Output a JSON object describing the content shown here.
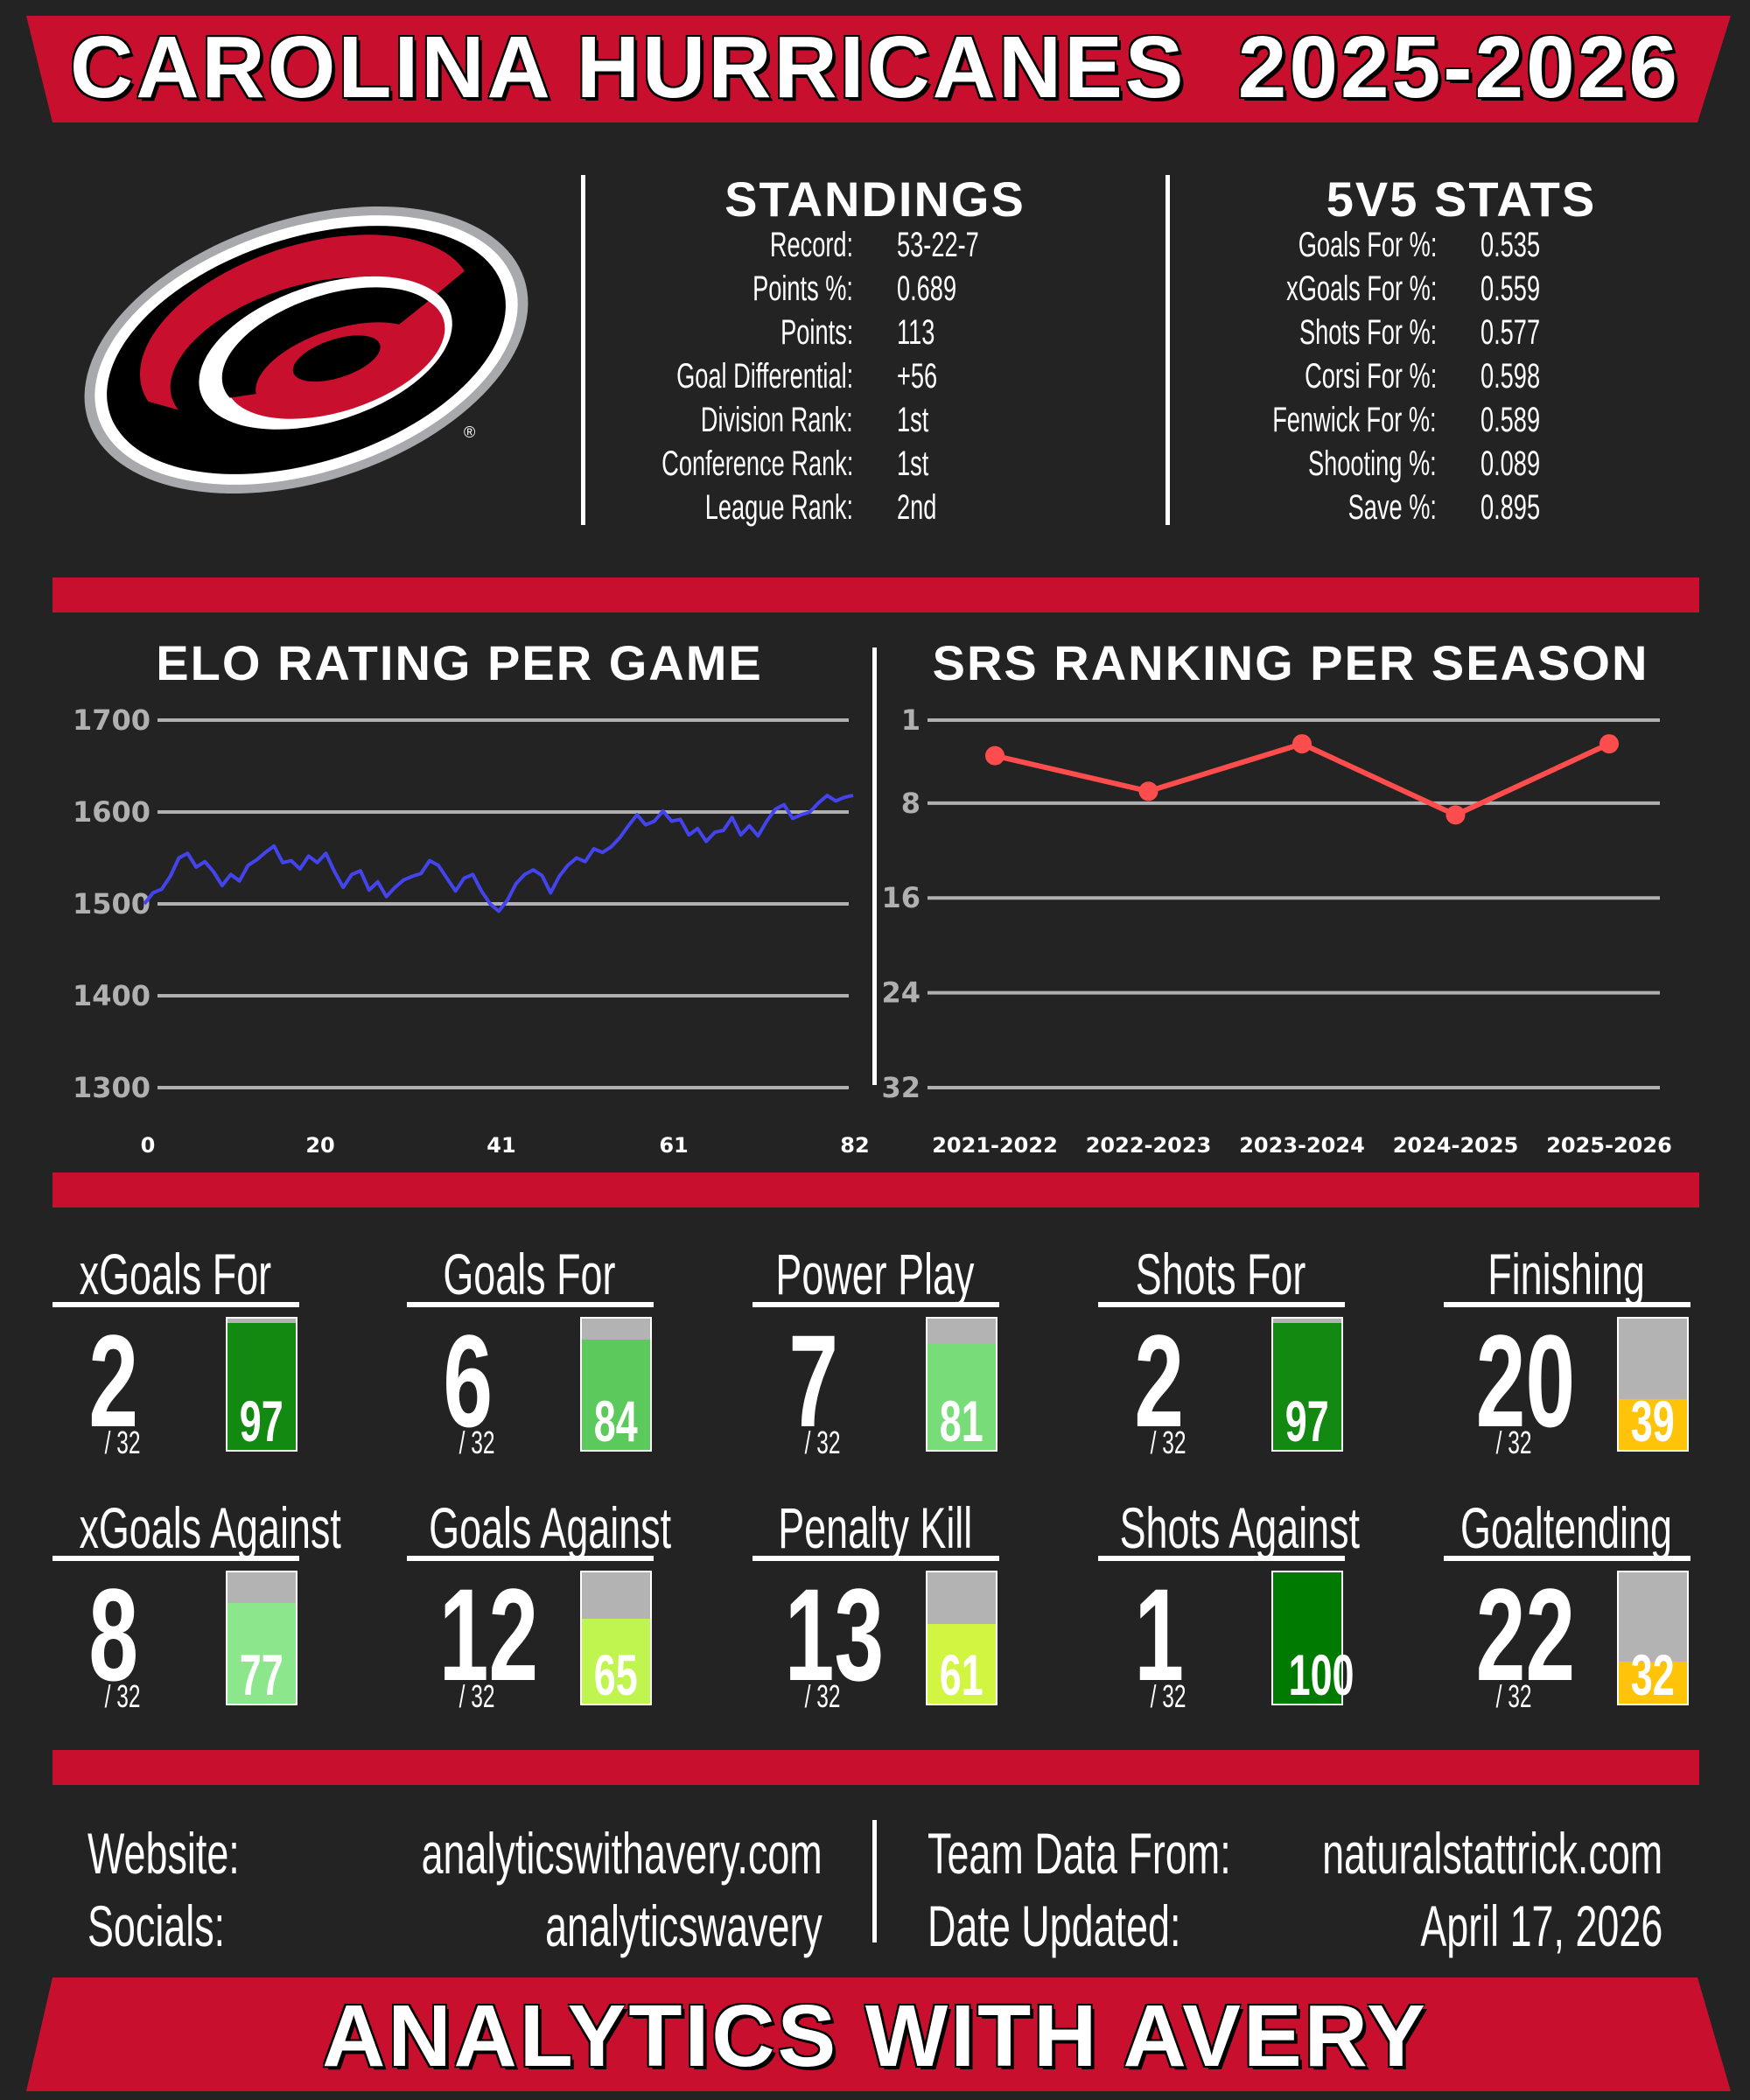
{
  "header": {
    "team": "CAROLINA HURRICANES",
    "season": "2025-2026"
  },
  "standings": {
    "title": "STANDINGS",
    "rows": [
      {
        "label": "Record:",
        "value": "53-22-7"
      },
      {
        "label": "Points %:",
        "value": "0.689"
      },
      {
        "label": "Points:",
        "value": "113"
      },
      {
        "label": "Goal Differential:",
        "value": "+56"
      },
      {
        "label": "Division Rank:",
        "value": "1st"
      },
      {
        "label": "Conference Rank:",
        "value": "1st"
      },
      {
        "label": "League Rank:",
        "value": "2nd"
      }
    ]
  },
  "fivev5": {
    "title": "5V5 STATS",
    "rows": [
      {
        "label": "Goals For %:",
        "value": "0.535"
      },
      {
        "label": "xGoals For %:",
        "value": "0.559"
      },
      {
        "label": "Shots For %:",
        "value": "0.577"
      },
      {
        "label": "Corsi For %:",
        "value": "0.598"
      },
      {
        "label": "Fenwick For %:",
        "value": "0.589"
      },
      {
        "label": "Shooting %:",
        "value": "0.089"
      },
      {
        "label": "Save %:",
        "value": "0.895"
      }
    ]
  },
  "chart_data": [
    {
      "type": "line",
      "title": "ELO RATING PER GAME",
      "x_ticks": [
        0,
        20,
        41,
        61,
        82
      ],
      "y_ticks": [
        1300,
        1400,
        1500,
        1600,
        1700
      ],
      "ylim": [
        1300,
        1700
      ],
      "xlim": [
        0,
        82
      ],
      "color": "#4444ee",
      "x": [
        0,
        1,
        2,
        3,
        4,
        5,
        6,
        7,
        8,
        9,
        10,
        11,
        12,
        13,
        14,
        15,
        16,
        17,
        18,
        19,
        20,
        21,
        22,
        23,
        24,
        25,
        26,
        27,
        28,
        29,
        30,
        31,
        32,
        33,
        34,
        35,
        36,
        37,
        38,
        39,
        40,
        41,
        42,
        43,
        44,
        45,
        46,
        47,
        48,
        49,
        50,
        51,
        52,
        53,
        54,
        55,
        56,
        57,
        58,
        59,
        60,
        61,
        62,
        63,
        64,
        65,
        66,
        67,
        68,
        69,
        70,
        71,
        72,
        73,
        74,
        75,
        76,
        77,
        78,
        79,
        80,
        81,
        82
      ],
      "y": [
        1500,
        1512,
        1516,
        1530,
        1550,
        1555,
        1540,
        1546,
        1535,
        1520,
        1532,
        1525,
        1542,
        1548,
        1556,
        1563,
        1545,
        1547,
        1538,
        1552,
        1545,
        1555,
        1535,
        1518,
        1532,
        1536,
        1515,
        1524,
        1508,
        1518,
        1526,
        1530,
        1533,
        1547,
        1542,
        1528,
        1514,
        1528,
        1532,
        1514,
        1500,
        1492,
        1504,
        1522,
        1532,
        1537,
        1531,
        1512,
        1530,
        1542,
        1550,
        1546,
        1560,
        1556,
        1562,
        1572,
        1585,
        1597,
        1586,
        1590,
        1601,
        1590,
        1592,
        1575,
        1582,
        1568,
        1578,
        1580,
        1594,
        1575,
        1585,
        1574,
        1590,
        1603,
        1608,
        1593,
        1597,
        1600,
        1610,
        1618,
        1612,
        1616,
        1618
      ]
    },
    {
      "type": "line",
      "title": "SRS RANKING PER SEASON",
      "categories": [
        "2021-2022",
        "2022-2023",
        "2023-2024",
        "2024-2025",
        "2025-2026"
      ],
      "values": [
        4,
        7,
        3,
        9,
        3
      ],
      "y_ticks": [
        1,
        8,
        16,
        24,
        32
      ],
      "ylim": [
        1,
        32
      ],
      "y_inverted": true,
      "color": "#ff4d4d"
    }
  ],
  "tiles": [
    {
      "label": "xGoals For",
      "rank": "2",
      "of": "/ 32",
      "pct": 97,
      "color": "#128a12"
    },
    {
      "label": "Goals For",
      "rank": "6",
      "of": "/ 32",
      "pct": 84,
      "color": "#5cc95c"
    },
    {
      "label": "Power Play",
      "rank": "7",
      "of": "/ 32",
      "pct": 81,
      "color": "#78dd78"
    },
    {
      "label": "Shots For",
      "rank": "2",
      "of": "/ 32",
      "pct": 97,
      "color": "#128a12"
    },
    {
      "label": "Finishing",
      "rank": "20",
      "of": "/ 32",
      "pct": 39,
      "color": "#ffc40a"
    },
    {
      "label": "xGoals Against",
      "rank": "8",
      "of": "/ 32",
      "pct": 77,
      "color": "#8ce68c"
    },
    {
      "label": "Goals Against",
      "rank": "12",
      "of": "/ 32",
      "pct": 65,
      "color": "#c0f550"
    },
    {
      "label": "Penalty Kill",
      "rank": "13",
      "of": "/ 32",
      "pct": 61,
      "color": "#d2f542"
    },
    {
      "label": "Shots Against",
      "rank": "1",
      "of": "/ 32",
      "pct": 100,
      "color": "#007a00"
    },
    {
      "label": "Goaltending",
      "rank": "22",
      "of": "/ 32",
      "pct": 32,
      "color": "#ffc40a"
    }
  ],
  "footer": {
    "website_label": "Website:",
    "website": "analyticswithavery.com",
    "socials_label": "Socials:",
    "socials": "analyticswavery",
    "data_label": "Team Data From:",
    "data_source": "naturalstattrick.com",
    "updated_label": "Date Updated:",
    "updated": "April 17, 2026",
    "brand": "ANALYTICS WITH AVERY"
  },
  "colors": {
    "accent": "#c8102e",
    "background": "#232323"
  }
}
